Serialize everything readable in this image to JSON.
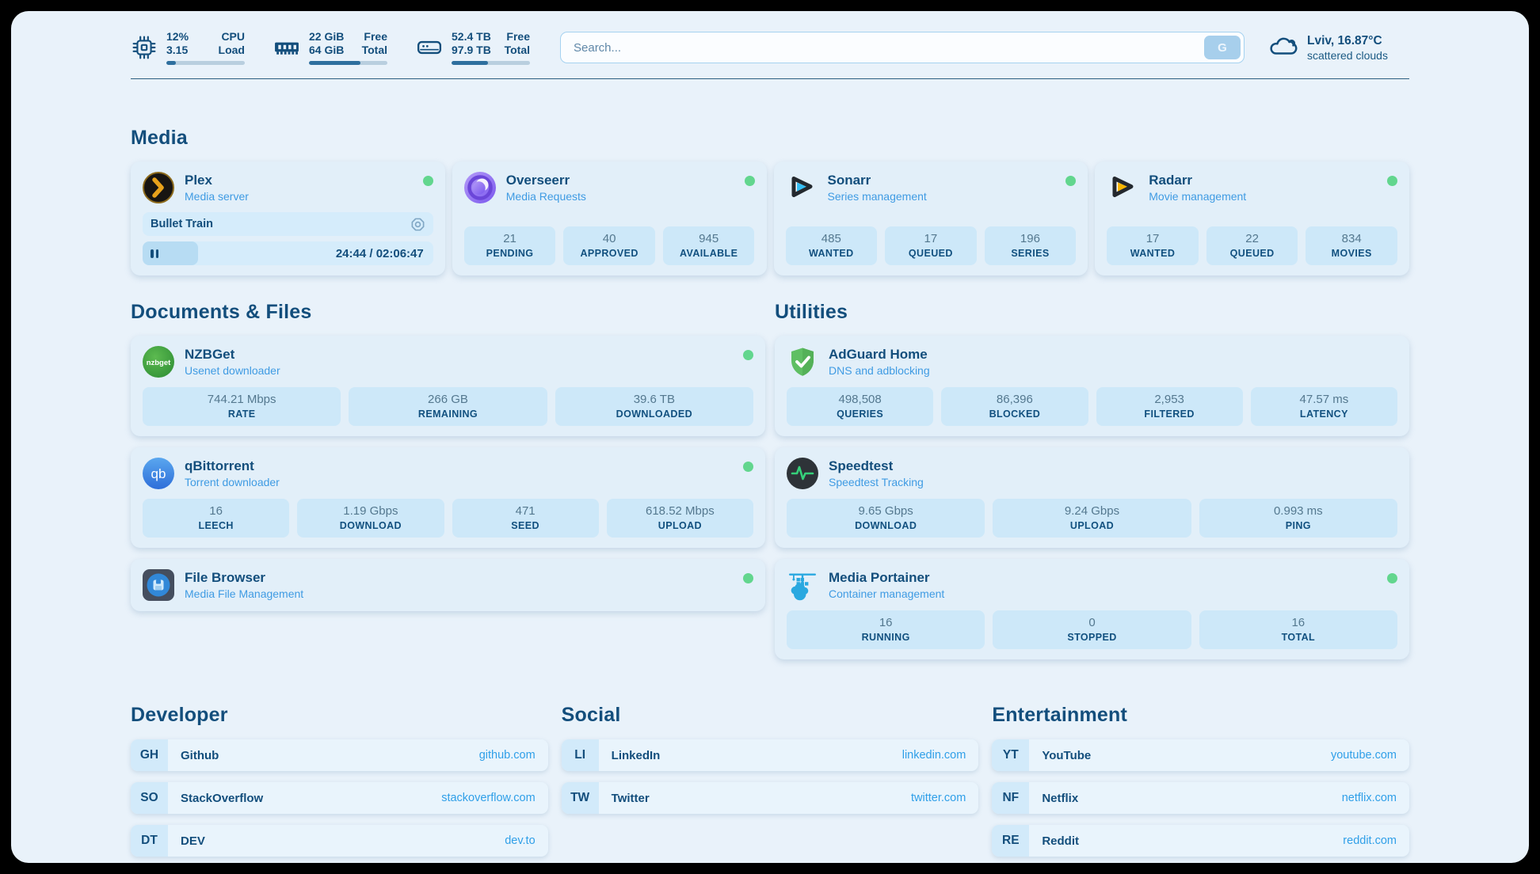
{
  "topbar": {
    "stats": [
      {
        "icon": "cpu-icon",
        "value1": "12%",
        "value2": "3.15",
        "label1": "CPU",
        "label2": "Load",
        "progress": 12
      },
      {
        "icon": "ram-icon",
        "value1": "22 GiB",
        "value2": "64 GiB",
        "label1": "Free",
        "label2": "Total",
        "progress": 66
      },
      {
        "icon": "disk-icon",
        "value1": "52.4 TB",
        "value2": "97.9 TB",
        "label1": "Free",
        "label2": "Total",
        "progress": 46
      }
    ],
    "search": {
      "placeholder": "Search...",
      "button": "G"
    },
    "weather": {
      "icon": "cloud-icon",
      "location_temp": "Lviv, 16.87°C",
      "condition": "scattered clouds"
    }
  },
  "media": {
    "title": "Media",
    "apps": [
      {
        "icon": "plex-icon",
        "title": "Plex",
        "subtitle": "Media server",
        "online": true,
        "player": {
          "track": "Bullet Train",
          "time": "24:44 / 02:06:47",
          "progress": 19
        }
      },
      {
        "icon": "overseerr-icon",
        "title": "Overseerr",
        "subtitle": "Media Requests",
        "online": true,
        "stats": [
          {
            "value": "21",
            "label": "PENDING"
          },
          {
            "value": "40",
            "label": "APPROVED"
          },
          {
            "value": "945",
            "label": "AVAILABLE"
          }
        ]
      },
      {
        "icon": "sonarr-icon",
        "title": "Sonarr",
        "subtitle": "Series management",
        "online": true,
        "stats": [
          {
            "value": "485",
            "label": "WANTED"
          },
          {
            "value": "17",
            "label": "QUEUED"
          },
          {
            "value": "196",
            "label": "SERIES"
          }
        ]
      },
      {
        "icon": "radarr-icon",
        "title": "Radarr",
        "subtitle": "Movie management",
        "online": true,
        "stats": [
          {
            "value": "17",
            "label": "WANTED"
          },
          {
            "value": "22",
            "label": "QUEUED"
          },
          {
            "value": "834",
            "label": "MOVIES"
          }
        ]
      }
    ]
  },
  "documents": {
    "title": "Documents & Files",
    "apps": [
      {
        "icon": "nzbget-icon",
        "title": "NZBGet",
        "subtitle": "Usenet downloader",
        "online": true,
        "stats": [
          {
            "value": "744.21 Mbps",
            "label": "RATE"
          },
          {
            "value": "266 GB",
            "label": "REMAINING"
          },
          {
            "value": "39.6 TB",
            "label": "DOWNLOADED"
          }
        ]
      },
      {
        "icon": "qbittorrent-icon",
        "title": "qBittorrent",
        "subtitle": "Torrent downloader",
        "online": true,
        "stats": [
          {
            "value": "16",
            "label": "LEECH"
          },
          {
            "value": "1.19 Gbps",
            "label": "DOWNLOAD"
          },
          {
            "value": "471",
            "label": "SEED"
          },
          {
            "value": "618.52 Mbps",
            "label": "UPLOAD"
          }
        ]
      },
      {
        "icon": "filebrowser-icon",
        "title": "File Browser",
        "subtitle": "Media File Management",
        "online": true
      }
    ]
  },
  "utilities": {
    "title": "Utilities",
    "apps": [
      {
        "icon": "adguard-icon",
        "title": "AdGuard Home",
        "subtitle": "DNS and adblocking",
        "online": false,
        "stats": [
          {
            "value": "498,508",
            "label": "QUERIES"
          },
          {
            "value": "86,396",
            "label": "BLOCKED"
          },
          {
            "value": "2,953",
            "label": "FILTERED"
          },
          {
            "value": "47.57 ms",
            "label": "LATENCY"
          }
        ]
      },
      {
        "icon": "speedtest-icon",
        "title": "Speedtest",
        "subtitle": "Speedtest Tracking",
        "online": false,
        "stats": [
          {
            "value": "9.65 Gbps",
            "label": "DOWNLOAD"
          },
          {
            "value": "9.24 Gbps",
            "label": "UPLOAD"
          },
          {
            "value": "0.993 ms",
            "label": "PING"
          }
        ]
      },
      {
        "icon": "portainer-icon",
        "title": "Media Portainer",
        "subtitle": "Container management",
        "online": true,
        "stats": [
          {
            "value": "16",
            "label": "RUNNING"
          },
          {
            "value": "0",
            "label": "STOPPED"
          },
          {
            "value": "16",
            "label": "TOTAL"
          }
        ]
      }
    ]
  },
  "links": [
    {
      "title": "Developer",
      "items": [
        {
          "abbr": "GH",
          "name": "Github",
          "url": "github.com"
        },
        {
          "abbr": "SO",
          "name": "StackOverflow",
          "url": "stackoverflow.com"
        },
        {
          "abbr": "DT",
          "name": "DEV",
          "url": "dev.to"
        }
      ]
    },
    {
      "title": "Social",
      "items": [
        {
          "abbr": "LI",
          "name": "LinkedIn",
          "url": "linkedin.com"
        },
        {
          "abbr": "TW",
          "name": "Twitter",
          "url": "twitter.com"
        }
      ]
    },
    {
      "title": "Entertainment",
      "items": [
        {
          "abbr": "YT",
          "name": "YouTube",
          "url": "youtube.com"
        },
        {
          "abbr": "NF",
          "name": "Netflix",
          "url": "netflix.com"
        },
        {
          "abbr": "RE",
          "name": "Reddit",
          "url": "reddit.com"
        }
      ]
    }
  ],
  "colors": {
    "page_bg": "#e9f2fa",
    "card_bg": "#e2eff9",
    "stat_box": "#cde8f9",
    "primary_text": "#134e7c",
    "subtitle_blue": "#3f9be3",
    "link_blue": "#2f9fe8",
    "online_green": "#62d68e",
    "progress_fill": "#2e6f9e"
  }
}
